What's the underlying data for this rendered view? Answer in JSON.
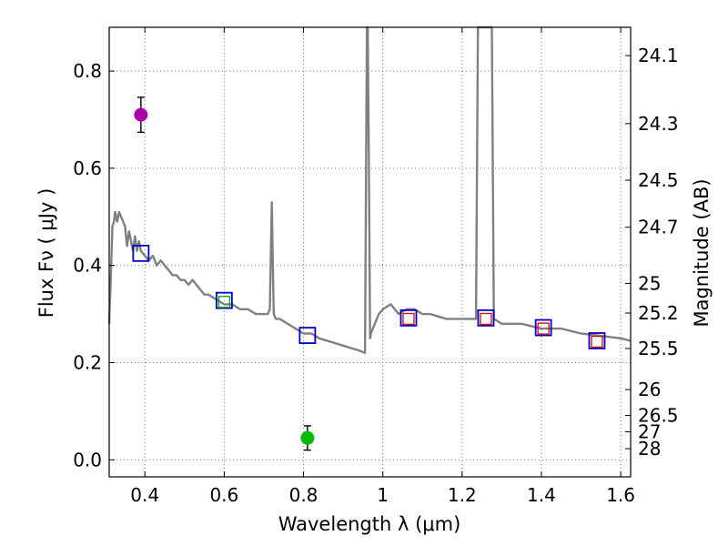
{
  "chart_data": {
    "type": "scatter",
    "title": "",
    "xlabel": "Wavelength  λ (μm)",
    "ylabel": "Flux  Fν  ( μJy )",
    "ylabel_right": "Magnitude (AB)",
    "xlim": [
      0.31,
      1.625
    ],
    "ylim": [
      -0.035,
      0.89
    ],
    "grid": true,
    "x_ticks": [
      0.4,
      0.6,
      0.8,
      1.0,
      1.2,
      1.4,
      1.6
    ],
    "x_tick_labels": [
      "0.4",
      "0.6",
      "0.8",
      "1",
      "1.2",
      "1.4",
      "1.6"
    ],
    "y_ticks": [
      0.0,
      0.2,
      0.4,
      0.6,
      0.8
    ],
    "y_tick_labels": [
      "0.0",
      "0.2",
      "0.4",
      "0.6",
      "0.8"
    ],
    "mag_ticks": [
      "24.1",
      "24.3",
      "24.5",
      "24.7",
      "25",
      "25.2",
      "25.5",
      "26",
      "26.5",
      "27",
      "28"
    ],
    "colors": {
      "model": "#808080",
      "model_box": "#0000cc",
      "obs_box": "#dd0000",
      "green_box": "#00aa00",
      "point_magenta": "#aa00aa",
      "point_green": "#00bb00",
      "errorbar": "#000000"
    },
    "series": [
      {
        "name": "model spectrum",
        "kind": "line",
        "x": [
          0.31,
          0.315,
          0.318,
          0.322,
          0.325,
          0.33,
          0.335,
          0.34,
          0.345,
          0.35,
          0.355,
          0.36,
          0.365,
          0.37,
          0.375,
          0.38,
          0.385,
          0.39,
          0.4,
          0.41,
          0.42,
          0.43,
          0.44,
          0.45,
          0.46,
          0.47,
          0.48,
          0.49,
          0.5,
          0.51,
          0.52,
          0.53,
          0.54,
          0.55,
          0.56,
          0.58,
          0.6,
          0.62,
          0.64,
          0.66,
          0.68,
          0.7,
          0.71,
          0.715,
          0.72,
          0.725,
          0.73,
          0.74,
          0.76,
          0.78,
          0.8,
          0.82,
          0.84,
          0.86,
          0.88,
          0.9,
          0.92,
          0.94,
          0.955,
          0.96,
          0.962,
          0.965,
          0.968,
          0.97,
          0.975,
          0.98,
          0.99,
          1.0,
          1.02,
          1.04,
          1.06,
          1.08,
          1.1,
          1.12,
          1.14,
          1.16,
          1.18,
          1.2,
          1.22,
          1.235,
          1.24,
          1.245,
          1.255,
          1.265,
          1.275,
          1.28,
          1.3,
          1.35,
          1.4,
          1.45,
          1.5,
          1.55,
          1.6,
          1.625
        ],
        "y": [
          0.28,
          0.4,
          0.48,
          0.49,
          0.51,
          0.49,
          0.51,
          0.5,
          0.49,
          0.48,
          0.44,
          0.47,
          0.45,
          0.43,
          0.46,
          0.43,
          0.45,
          0.43,
          0.42,
          0.41,
          0.42,
          0.4,
          0.41,
          0.4,
          0.39,
          0.38,
          0.38,
          0.37,
          0.37,
          0.36,
          0.37,
          0.36,
          0.35,
          0.34,
          0.34,
          0.33,
          0.32,
          0.32,
          0.31,
          0.31,
          0.3,
          0.3,
          0.3,
          0.31,
          0.53,
          0.3,
          0.29,
          0.29,
          0.28,
          0.27,
          0.26,
          0.26,
          0.25,
          0.245,
          0.24,
          0.235,
          0.23,
          0.225,
          0.22,
          0.9,
          0.9,
          0.6,
          0.25,
          0.26,
          0.27,
          0.28,
          0.3,
          0.31,
          0.32,
          0.3,
          0.31,
          0.31,
          0.3,
          0.3,
          0.295,
          0.29,
          0.29,
          0.29,
          0.29,
          0.29,
          0.9,
          0.9,
          0.9,
          0.9,
          0.9,
          0.29,
          0.28,
          0.28,
          0.27,
          0.27,
          0.26,
          0.255,
          0.25,
          0.245
        ]
      },
      {
        "name": "model photometry",
        "kind": "square",
        "x": [
          0.39,
          0.6,
          0.81,
          1.065,
          1.26,
          1.405,
          1.54
        ],
        "y": [
          0.425,
          0.328,
          0.256,
          0.292,
          0.292,
          0.272,
          0.245
        ]
      },
      {
        "name": "observed photometry",
        "kind": "square",
        "x": [
          1.065,
          1.26,
          1.405,
          1.54
        ],
        "y": [
          0.29,
          0.29,
          0.27,
          0.243
        ]
      },
      {
        "name": "green photometry",
        "kind": "square",
        "x": [
          0.6
        ],
        "y": [
          0.325
        ]
      },
      {
        "name": "magenta detection",
        "kind": "point",
        "x": [
          0.39
        ],
        "y": [
          0.71
        ],
        "yerr": [
          0.036
        ]
      },
      {
        "name": "green detection",
        "kind": "point",
        "x": [
          0.81
        ],
        "y": [
          0.045
        ],
        "yerr": [
          0.025
        ]
      }
    ]
  }
}
